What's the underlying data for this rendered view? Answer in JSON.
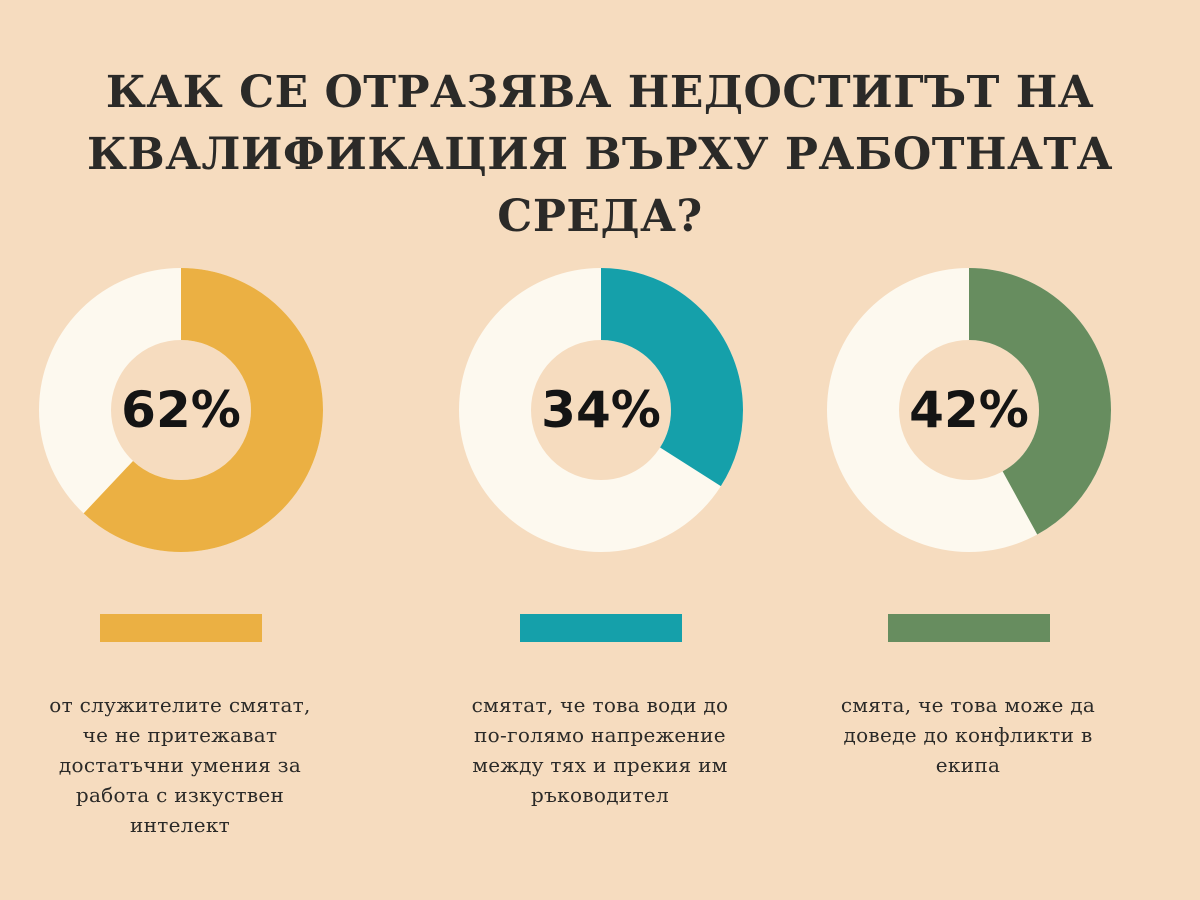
{
  "title": {
    "line1": "КАК СЕ ОТРАЗЯВА НЕДОСТИГЪТ НА",
    "line2": "КВАЛИФИКАЦИЯ ВЪРХУ РАБОТНАТА СРЕДА?"
  },
  "colors": {
    "background": "#f6dcbf",
    "ring_base": "#fdf9ef",
    "series1": "#ebb043",
    "series2": "#15a0aa",
    "series3": "#678d5f"
  },
  "chart_data": [
    {
      "type": "pie",
      "variant": "donut",
      "value": 62,
      "unit": "%",
      "label": "62%",
      "color": "#ebb043",
      "description": [
        "от служителите смятат,",
        "че не притежават",
        "достатъчни умения за",
        "работа с изкуствен",
        "интелект"
      ]
    },
    {
      "type": "pie",
      "variant": "donut",
      "value": 34,
      "unit": "%",
      "label": "34%",
      "color": "#15a0aa",
      "description": [
        "смятат, че това води до",
        "по-голямо напрежение",
        "между тях и прекия им",
        "ръководител"
      ]
    },
    {
      "type": "pie",
      "variant": "donut",
      "value": 42,
      "unit": "%",
      "label": "42%",
      "color": "#678d5f",
      "description": [
        "смята, че това може да",
        "доведе до конфликти в",
        "екипа"
      ]
    }
  ]
}
